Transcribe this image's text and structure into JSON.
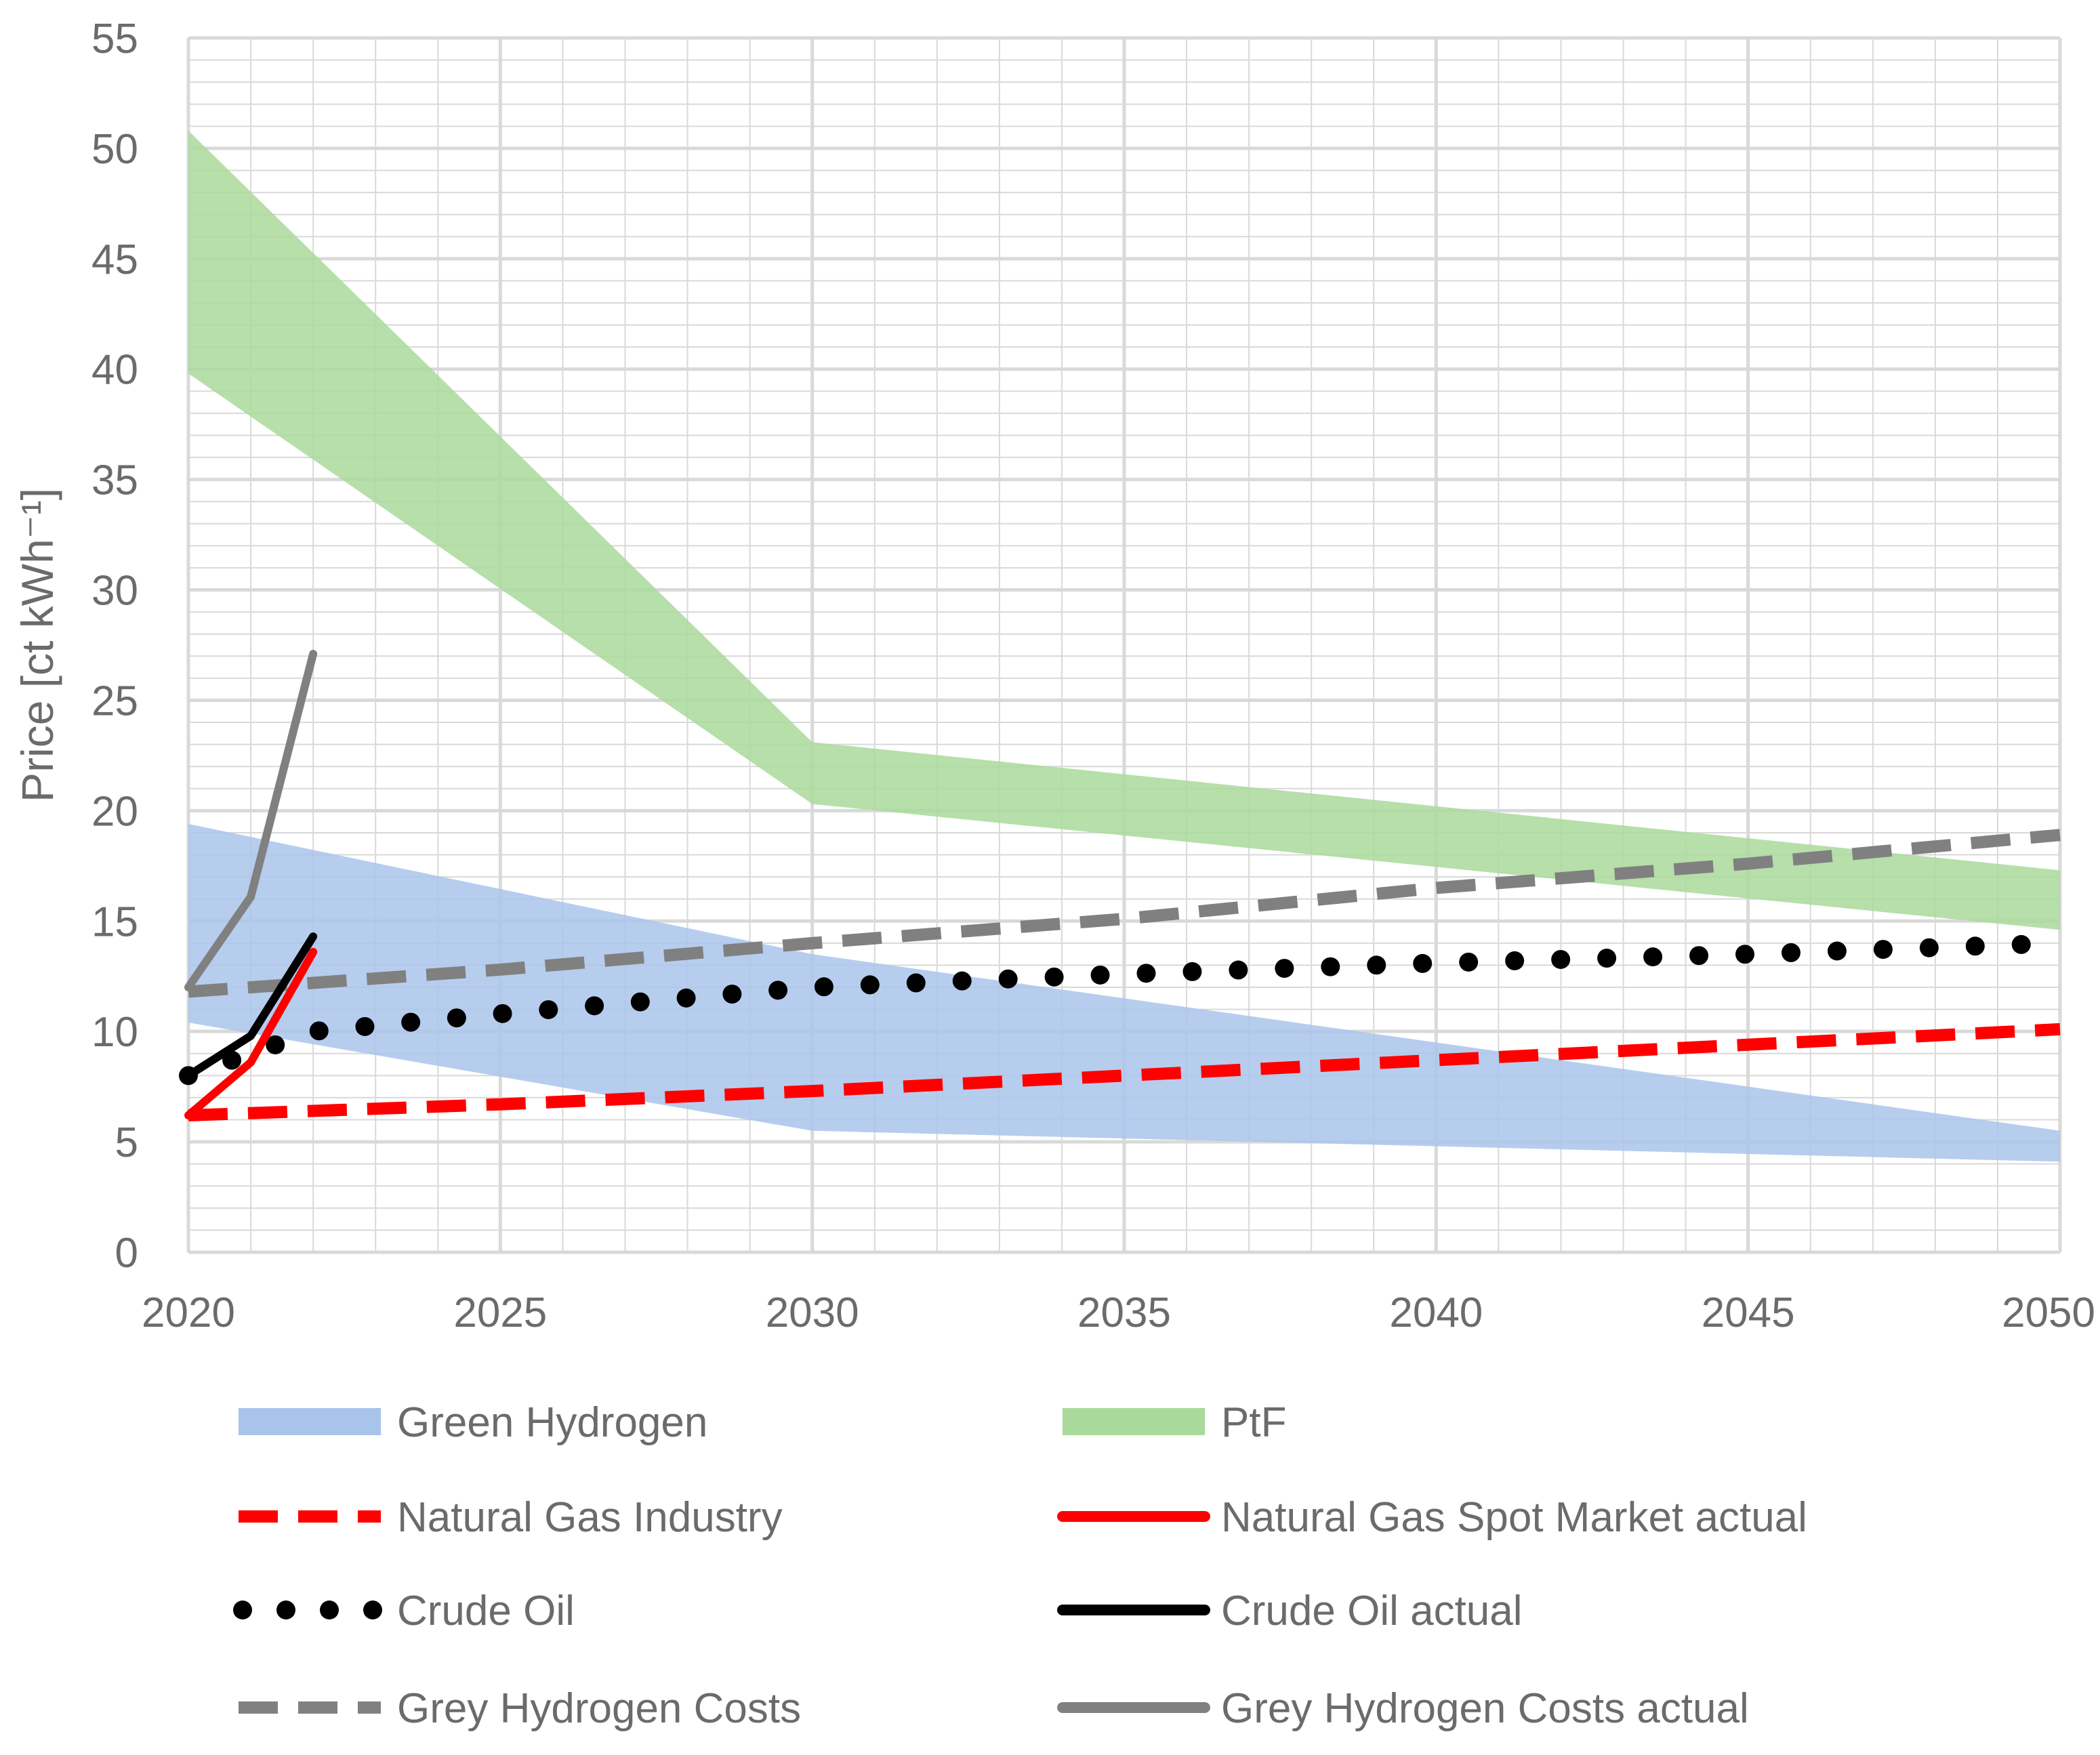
{
  "chart_data": {
    "type": "line",
    "title": "",
    "xlabel": "",
    "ylabel": "Price [ct kWh⁻¹]",
    "xlim": [
      2020,
      2050
    ],
    "ylim": [
      0,
      55
    ],
    "x_ticks": [
      "2020",
      "2025",
      "2030",
      "2035",
      "2040",
      "2045",
      "2050"
    ],
    "y_ticks": [
      "0",
      "5",
      "10",
      "15",
      "20",
      "25",
      "30",
      "35",
      "40",
      "45",
      "50",
      "55"
    ],
    "grid": true,
    "legend_position": "bottom",
    "bands": [
      {
        "name": "Green Hydrogen",
        "color": "#a9c4eb",
        "x": [
          2020,
          2030,
          2050
        ],
        "lower": [
          10.4,
          5.5,
          4.1
        ],
        "upper": [
          19.4,
          13.5,
          5.5
        ]
      },
      {
        "name": "PtF",
        "color": "#a9d99b",
        "x": [
          2020,
          2030,
          2050
        ],
        "lower": [
          39.8,
          20.3,
          14.6
        ],
        "upper": [
          50.8,
          23.1,
          17.3
        ]
      }
    ],
    "series": [
      {
        "name": "Natural Gas Industry",
        "style": "dashed",
        "color": "#ff0000",
        "x": [
          2020,
          2025,
          2030,
          2035,
          2040,
          2045,
          2050
        ],
        "y": [
          6.2,
          6.7,
          7.3,
          8.0,
          8.7,
          9.4,
          10.1
        ]
      },
      {
        "name": "Natural Gas Spot Market actual",
        "style": "solid",
        "color": "#ff0000",
        "x": [
          2020,
          2021,
          2022
        ],
        "y": [
          6.2,
          8.6,
          13.6
        ]
      },
      {
        "name": "Crude Oil",
        "style": "dotted",
        "color": "#000000",
        "x": [
          2020,
          2022,
          2025,
          2030,
          2035,
          2040,
          2045,
          2050
        ],
        "y": [
          8.0,
          10.0,
          10.8,
          12.0,
          12.6,
          13.1,
          13.5,
          14.0
        ]
      },
      {
        "name": "Crude Oil actual",
        "style": "solid",
        "color": "#000000",
        "x": [
          2020,
          2021,
          2022
        ],
        "y": [
          8.0,
          9.8,
          14.3
        ]
      },
      {
        "name": "Grey Hydrogen Costs",
        "style": "dashed",
        "color": "#808080",
        "x": [
          2020,
          2025,
          2030,
          2035,
          2040,
          2045,
          2050
        ],
        "y": [
          11.8,
          12.8,
          14.0,
          15.1,
          16.5,
          17.6,
          18.9
        ]
      },
      {
        "name": "Grey Hydrogen Costs actual",
        "style": "solid",
        "color": "#808080",
        "x": [
          2020,
          2021,
          2022
        ],
        "y": [
          12.0,
          16.1,
          27.1
        ]
      }
    ],
    "legend": [
      "Green Hydrogen",
      "PtF",
      "Natural Gas Industry",
      "Natural Gas Spot Market actual",
      "Crude Oil",
      "Crude Oil actual",
      "Grey Hydrogen Costs",
      "Grey Hydrogen Costs actual"
    ]
  }
}
